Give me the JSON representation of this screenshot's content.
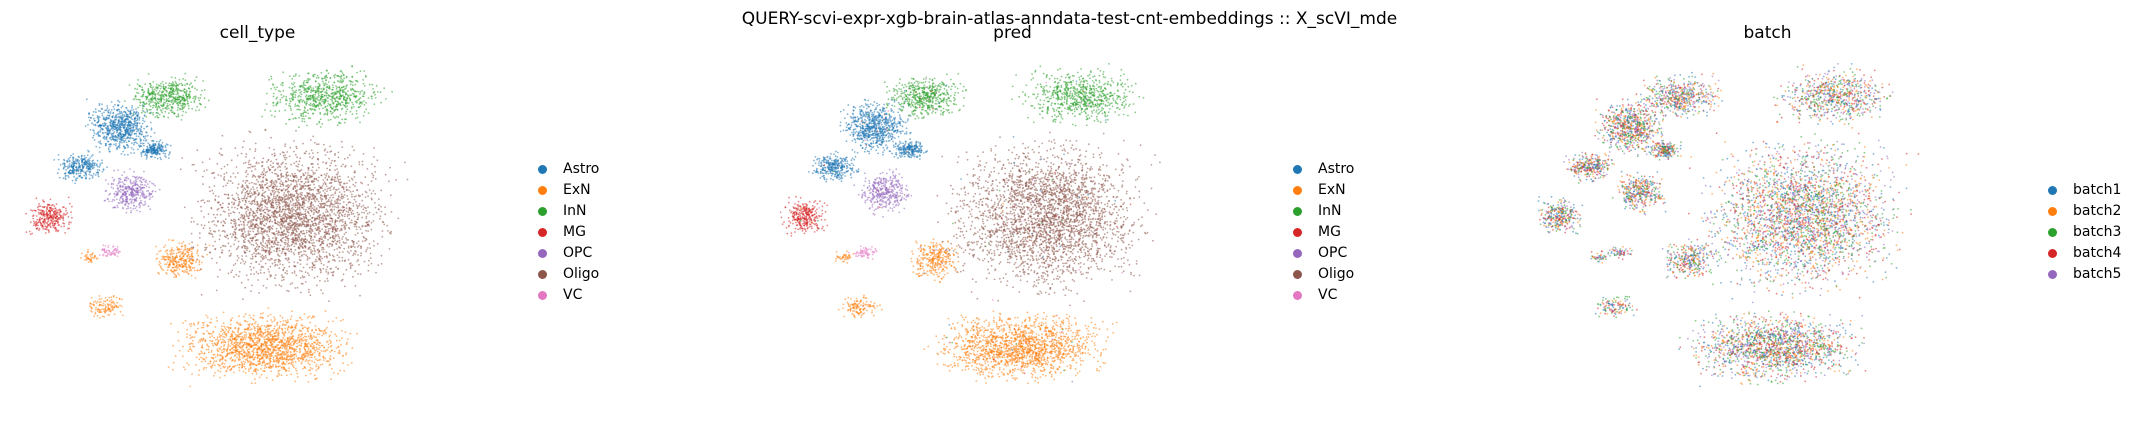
{
  "suptitle": "QUERY-scvi-expr-xgb-brain-atlas-anndata-test-cnt-embeddings :: X_scVI_mde",
  "chart_data": [
    {
      "type": "scatter",
      "title": "cell_type",
      "xlabel": "",
      "ylabel": "",
      "grid": false,
      "axes_visible": false,
      "legend_placement": "right",
      "legend": [
        {
          "label": "Astro",
          "color": "#1f77b4"
        },
        {
          "label": "ExN",
          "color": "#ff7f0e"
        },
        {
          "label": "InN",
          "color": "#2ca02c"
        },
        {
          "label": "MG",
          "color": "#d62728"
        },
        {
          "label": "OPC",
          "color": "#9467bd"
        },
        {
          "label": "Oligo",
          "color": "#8c564b"
        },
        {
          "label": "VC",
          "color": "#e377c2"
        }
      ]
    },
    {
      "type": "scatter",
      "title": "pred",
      "xlabel": "",
      "ylabel": "",
      "grid": false,
      "axes_visible": false,
      "legend_placement": "right",
      "legend": [
        {
          "label": "Astro",
          "color": "#1f77b4"
        },
        {
          "label": "ExN",
          "color": "#ff7f0e"
        },
        {
          "label": "InN",
          "color": "#2ca02c"
        },
        {
          "label": "MG",
          "color": "#d62728"
        },
        {
          "label": "OPC",
          "color": "#9467bd"
        },
        {
          "label": "Oligo",
          "color": "#8c564b"
        },
        {
          "label": "VC",
          "color": "#e377c2"
        }
      ]
    },
    {
      "type": "scatter",
      "title": "batch",
      "xlabel": "",
      "ylabel": "",
      "grid": false,
      "axes_visible": false,
      "legend_placement": "right",
      "legend": [
        {
          "label": "batch1",
          "color": "#1f77b4"
        },
        {
          "label": "batch2",
          "color": "#ff7f0e"
        },
        {
          "label": "batch3",
          "color": "#2ca02c"
        },
        {
          "label": "batch4",
          "color": "#d62728"
        },
        {
          "label": "batch5",
          "color": "#9467bd"
        }
      ]
    }
  ]
}
